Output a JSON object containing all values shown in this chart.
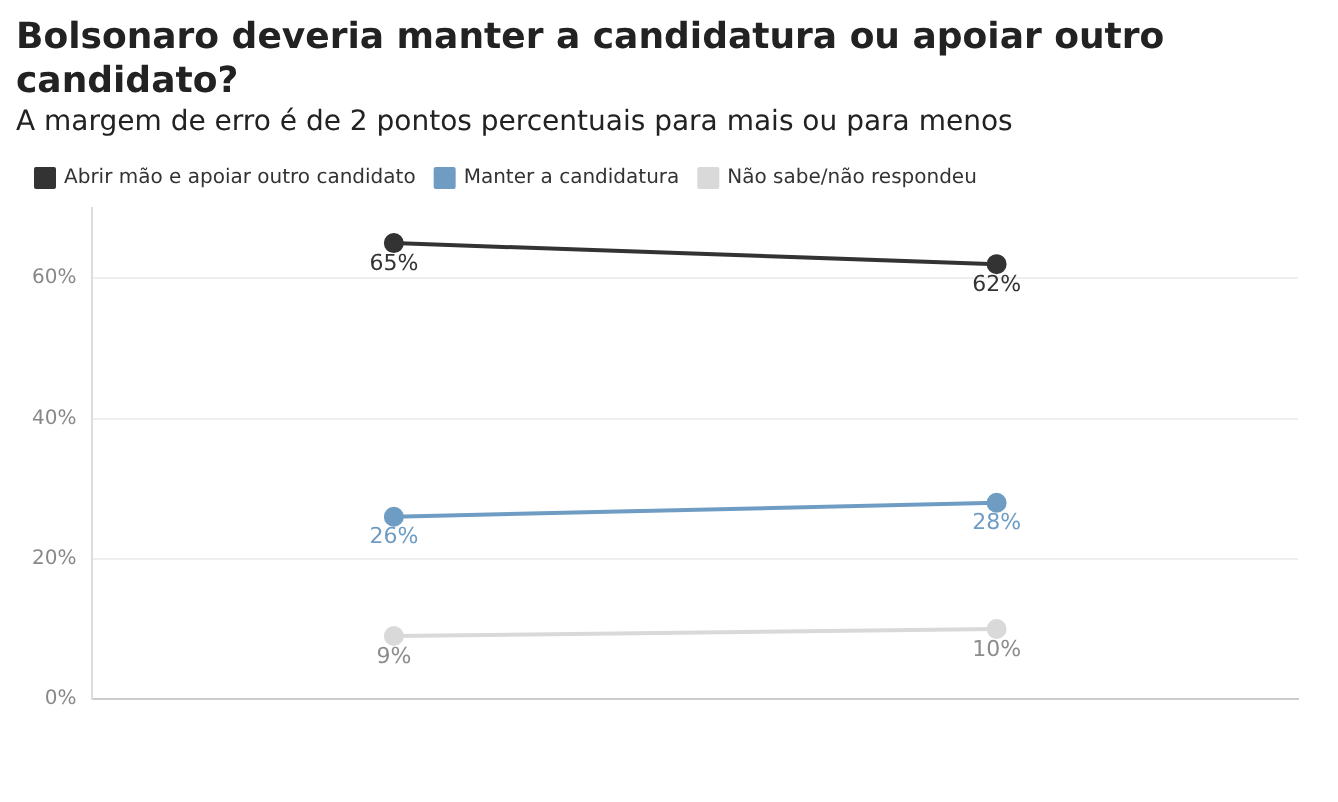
{
  "chart_data": {
    "type": "line",
    "title": "Bolsonaro deveria manter a candidatura ou apoiar outro candidato?",
    "subtitle": "A margem de erro é de 2 pontos percentuais para mais ou para menos",
    "categories": [
      null,
      null
    ],
    "series": [
      {
        "name": "Abrir mão e apoiar outro candidato",
        "color": "#333333",
        "values": [
          65,
          62
        ],
        "value_labels": [
          "65%",
          "62%"
        ]
      },
      {
        "name": "Manter a candidatura",
        "color": "#6f9cc3",
        "values": [
          26,
          28
        ],
        "value_labels": [
          "26%",
          "28%"
        ]
      },
      {
        "name": "Não sabe/não respondeu",
        "color": "#d9d9d9",
        "values": [
          9,
          10
        ],
        "value_labels": [
          "9%",
          "10%"
        ]
      }
    ],
    "ylim": [
      0,
      70
    ],
    "yticks": [
      {
        "value": 0,
        "label": "0%"
      },
      {
        "value": 20,
        "label": "20%"
      },
      {
        "value": 40,
        "label": "40%"
      },
      {
        "value": 60,
        "label": "60%"
      }
    ],
    "grid": "y",
    "legend": "top left",
    "marker": "circle",
    "line_style": "solid"
  }
}
